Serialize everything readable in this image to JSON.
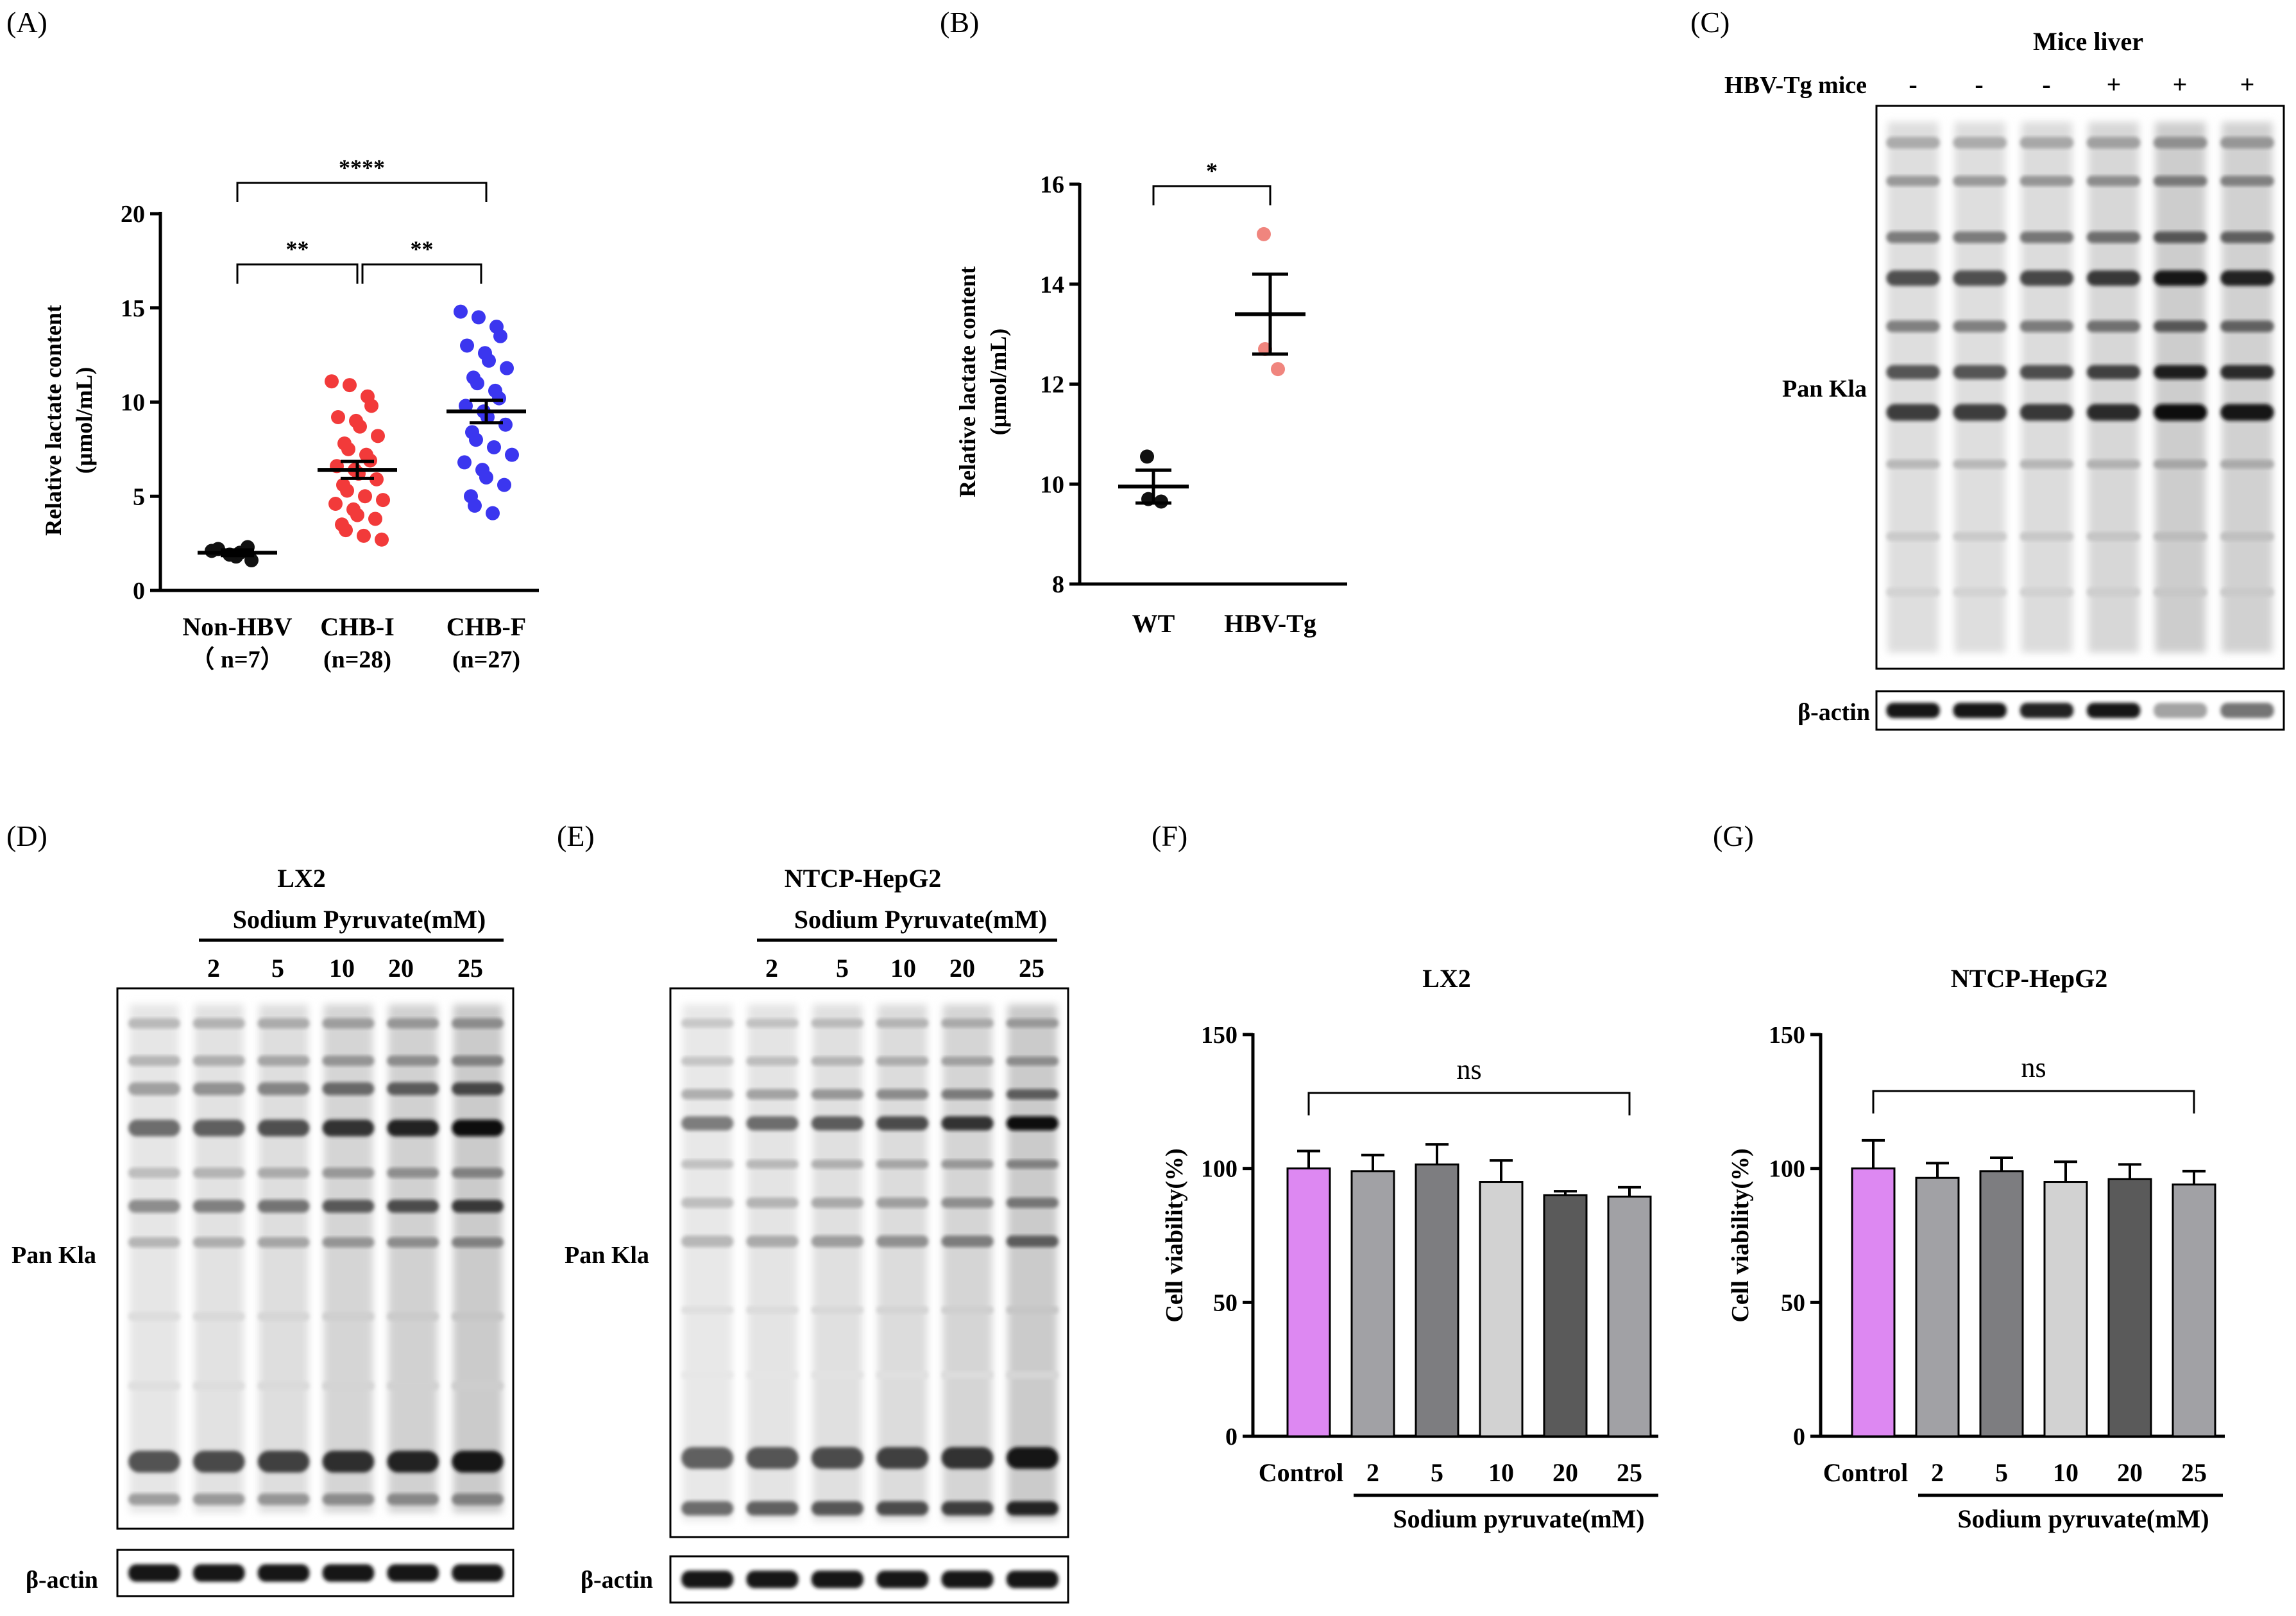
{
  "panels": {
    "A": {
      "label": "(A)",
      "chart_data": {
        "type": "scatter",
        "ylabel_line1": "Relative lactate content",
        "ylabel_line2": "(μmol/mL)",
        "ylim": [
          0,
          20
        ],
        "yticks": [
          "0",
          "5",
          "10",
          "15",
          "20"
        ],
        "categories": [
          {
            "name": "Non-HBV",
            "n": "（ n=7）",
            "color": "#111111",
            "mean": 2.0,
            "sem": 0.15,
            "values": [
              2.1,
              1.9,
              2.3,
              1.6,
              2.2,
              1.8,
              2.0
            ]
          },
          {
            "name": "CHB-I",
            "n": "(n=28)",
            "color": "#f23a3a",
            "mean": 6.4,
            "sem": 0.45,
            "values": [
              11.1,
              10.9,
              10.3,
              9.8,
              9.2,
              9.0,
              8.7,
              8.2,
              7.8,
              7.5,
              7.2,
              6.9,
              6.6,
              6.4,
              6.2,
              5.9,
              5.6,
              5.3,
              5.0,
              4.8,
              4.6,
              4.3,
              4.0,
              3.8,
              3.5,
              3.2,
              2.9,
              2.7
            ]
          },
          {
            "name": "CHB-F",
            "n": "(n=27)",
            "color": "#3b36ef",
            "mean": 9.5,
            "sem": 0.6,
            "values": [
              14.8,
              14.5,
              14.0,
              13.5,
              13.0,
              12.6,
              12.2,
              11.8,
              11.3,
              11.0,
              10.6,
              10.2,
              9.8,
              9.5,
              9.2,
              8.8,
              8.4,
              8.0,
              7.6,
              7.2,
              6.8,
              6.4,
              6.0,
              5.6,
              5.0,
              4.5,
              4.1
            ]
          }
        ],
        "significance": [
          {
            "from": 0,
            "to": 2,
            "label": "****"
          },
          {
            "from": 0,
            "to": 1,
            "label": "**"
          },
          {
            "from": 1,
            "to": 2,
            "label": "**"
          }
        ]
      }
    },
    "B": {
      "label": "(B)",
      "chart_data": {
        "type": "scatter",
        "ylabel_line1": "Relative lactate content",
        "ylabel_line2": "(μmol/mL)",
        "ylim": [
          8,
          16
        ],
        "yticks": [
          "8",
          "10",
          "12",
          "14",
          "16"
        ],
        "categories": [
          {
            "name": "WT",
            "color": "#111111",
            "mean": 9.95,
            "sem": 0.33,
            "values": [
              10.55,
              9.7,
              9.65
            ]
          },
          {
            "name": "HBV-Tg",
            "color": "#f0857e",
            "mean": 13.4,
            "sem": 0.8,
            "values": [
              15.0,
              12.7,
              12.3
            ]
          }
        ],
        "significance": [
          {
            "from": 0,
            "to": 1,
            "label": "*"
          }
        ]
      }
    },
    "C": {
      "label": "(C)",
      "title": "Mice liver",
      "row_label": "HBV-Tg mice",
      "signs": [
        "-",
        "-",
        "-",
        "+",
        "+",
        "+"
      ],
      "blot_label": "Pan Kla",
      "actin_label": "β-actin",
      "lane_intensity": [
        0.55,
        0.55,
        0.6,
        0.7,
        0.95,
        0.85
      ],
      "actin_intensity": [
        0.95,
        0.95,
        0.9,
        0.95,
        0.35,
        0.55
      ]
    },
    "D": {
      "label": "(D)",
      "title": "LX2",
      "treatment": "Sodium Pyruvate(mM)",
      "doses": [
        "2",
        "5",
        "10",
        "20",
        "25"
      ],
      "blot_label": "Pan Kla",
      "actin_label": "β-actin",
      "lane_intensity": [
        0.35,
        0.45,
        0.55,
        0.75,
        0.85,
        1.0
      ]
    },
    "E": {
      "label": "(E)",
      "title": "NTCP-HepG2",
      "treatment": "Sodium Pyruvate(mM)",
      "doses": [
        "2",
        "5",
        "10",
        "20",
        "25"
      ],
      "blot_label": "Pan Kla",
      "actin_label": "β-actin",
      "lane_intensity": [
        0.3,
        0.4,
        0.5,
        0.6,
        0.75,
        1.0
      ]
    },
    "F": {
      "label": "(F)",
      "chart_data": {
        "type": "bar",
        "title": "LX2",
        "ylabel": "Cell viability(%)",
        "ylim": [
          0,
          150
        ],
        "yticks": [
          "0",
          "50",
          "100",
          "150"
        ],
        "categories": [
          "Control",
          "2",
          "5",
          "10",
          "20",
          "25"
        ],
        "values": [
          100,
          99,
          101.5,
          95,
          90,
          89.5
        ],
        "errors": [
          6.5,
          6,
          7.5,
          8,
          1.5,
          3.5
        ],
        "colors": [
          "#dd88f2",
          "#a1a1a5",
          "#7d7d80",
          "#d2d2d2",
          "#5a5a5a",
          "#a1a1a5"
        ],
        "xgroup_label": "Sodium pyruvate(mM)",
        "significance": "ns"
      }
    },
    "G": {
      "label": "(G)",
      "chart_data": {
        "type": "bar",
        "title": "NTCP-HepG2",
        "ylabel": "Cell viability(%)",
        "ylim": [
          0,
          150
        ],
        "yticks": [
          "0",
          "50",
          "100",
          "150"
        ],
        "categories": [
          "Control",
          "2",
          "5",
          "10",
          "20",
          "25"
        ],
        "values": [
          100,
          96.5,
          99,
          95,
          96,
          94
        ],
        "errors": [
          10.5,
          5.5,
          5,
          7.5,
          5.5,
          5
        ],
        "colors": [
          "#dd88f2",
          "#a1a1a5",
          "#7d7d80",
          "#d2d2d2",
          "#5a5a5a",
          "#a1a1a5"
        ],
        "xgroup_label": "Sodium pyruvate(mM)",
        "significance": "ns"
      }
    }
  }
}
